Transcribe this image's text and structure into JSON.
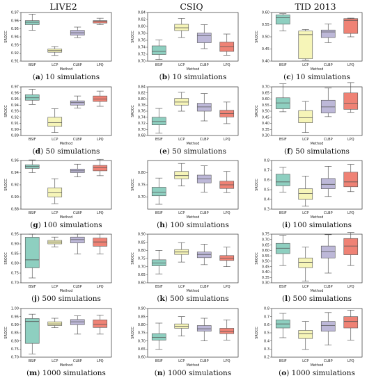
{
  "columns": [
    "LIVE2",
    "CSIQ",
    "TID 2013"
  ],
  "methods": [
    "BSIF",
    "LCP",
    "CLBP",
    "LPQ"
  ],
  "colors": [
    "#8ecfc0",
    "#f6f5b8",
    "#bdb8d8",
    "#ef8275"
  ],
  "xlabel": "Method",
  "ylabel": "SROCC",
  "chart_data": [
    {
      "type": "box",
      "label": "a",
      "caption": "10 simulations",
      "dataset": "LIVE2",
      "ylim": [
        0.91,
        0.97
      ],
      "yticks": [
        0.91,
        0.92,
        0.93,
        0.94,
        0.95,
        0.96,
        0.97
      ],
      "boxes": [
        [
          0.948,
          0.955,
          0.958,
          0.96,
          0.968
        ],
        [
          0.917,
          0.921,
          0.923,
          0.925,
          0.928
        ],
        [
          0.939,
          0.942,
          0.945,
          0.948,
          0.952
        ],
        [
          0.955,
          0.957,
          0.959,
          0.96,
          0.963
        ]
      ]
    },
    {
      "type": "box",
      "label": "b",
      "caption": "10 simulations",
      "dataset": "CSIQ",
      "ylim": [
        0.7,
        0.84
      ],
      "yticks": [
        0.7,
        0.72,
        0.74,
        0.76,
        0.78,
        0.8,
        0.82,
        0.84
      ],
      "boxes": [
        [
          0.705,
          0.719,
          0.728,
          0.744,
          0.761
        ],
        [
          0.768,
          0.788,
          0.796,
          0.806,
          0.823
        ],
        [
          0.736,
          0.753,
          0.773,
          0.781,
          0.805
        ],
        [
          0.717,
          0.728,
          0.742,
          0.755,
          0.778
        ]
      ]
    },
    {
      "type": "box",
      "label": "c",
      "caption": "10 simulations",
      "dataset": "TID 2013",
      "ylim": [
        0.4,
        0.6
      ],
      "yticks": [
        0.4,
        0.45,
        0.5,
        0.55,
        0.6
      ],
      "boxes": [
        [
          0.524,
          0.552,
          0.579,
          0.59,
          0.595
        ],
        [
          0.405,
          0.41,
          0.509,
          0.524,
          0.53
        ],
        [
          0.476,
          0.497,
          0.52,
          0.528,
          0.553
        ],
        [
          0.5,
          0.514,
          0.568,
          0.575,
          0.577
        ]
      ]
    },
    {
      "type": "box",
      "label": "d",
      "caption": "50 simulations",
      "dataset": "LIVE2",
      "ylim": [
        0.89,
        0.97
      ],
      "yticks": [
        0.89,
        0.9,
        0.91,
        0.92,
        0.93,
        0.94,
        0.95,
        0.96,
        0.97
      ],
      "boxes": [
        [
          0.941,
          0.948,
          0.952,
          0.957,
          0.966
        ],
        [
          0.895,
          0.905,
          0.911,
          0.92,
          0.934
        ],
        [
          0.935,
          0.94,
          0.944,
          0.947,
          0.955
        ],
        [
          0.938,
          0.946,
          0.95,
          0.955,
          0.963
        ]
      ]
    },
    {
      "type": "box",
      "label": "e",
      "caption": "50 simulations",
      "dataset": "CSIQ",
      "ylim": [
        0.68,
        0.84
      ],
      "yticks": [
        0.68,
        0.7,
        0.72,
        0.74,
        0.76,
        0.78,
        0.8,
        0.82,
        0.84
      ],
      "boxes": [
        [
          0.688,
          0.715,
          0.726,
          0.74,
          0.769
        ],
        [
          0.76,
          0.78,
          0.79,
          0.802,
          0.822
        ],
        [
          0.728,
          0.76,
          0.774,
          0.786,
          0.818
        ],
        [
          0.719,
          0.741,
          0.752,
          0.763,
          0.79
        ]
      ]
    },
    {
      "type": "box",
      "label": "f",
      "caption": "50 simulations",
      "dataset": "TID 2013",
      "ylim": [
        0.3,
        0.7
      ],
      "yticks": [
        0.3,
        0.35,
        0.4,
        0.45,
        0.5,
        0.55,
        0.6,
        0.65,
        0.7
      ],
      "boxes": [
        [
          0.495,
          0.52,
          0.568,
          0.61,
          0.725
        ],
        [
          0.325,
          0.405,
          0.445,
          0.505,
          0.58
        ],
        [
          0.455,
          0.485,
          0.535,
          0.59,
          0.69
        ],
        [
          0.49,
          0.515,
          0.565,
          0.65,
          0.735
        ]
      ]
    },
    {
      "type": "box",
      "label": "g",
      "caption": "100 simulations",
      "dataset": "LIVE2",
      "ylim": [
        0.88,
        0.96
      ],
      "yticks": [
        0.88,
        0.9,
        0.92,
        0.94,
        0.96
      ],
      "boxes": [
        [
          0.94,
          0.947,
          0.95,
          0.953,
          0.961
        ],
        [
          0.889,
          0.9,
          0.907,
          0.915,
          0.93
        ],
        [
          0.933,
          0.94,
          0.943,
          0.946,
          0.954
        ],
        [
          0.935,
          0.943,
          0.948,
          0.952,
          0.962
        ]
      ]
    },
    {
      "type": "box",
      "label": "h",
      "caption": "100 simulations",
      "dataset": "CSIQ",
      "ylim": [
        0.65,
        0.85
      ],
      "yticks": [
        0.7,
        0.75,
        0.8
      ],
      "boxes": [
        [
          0.67,
          0.705,
          0.72,
          0.74,
          0.778
        ],
        [
          0.745,
          0.775,
          0.788,
          0.805,
          0.838
        ],
        [
          0.72,
          0.758,
          0.775,
          0.79,
          0.828
        ],
        [
          0.718,
          0.735,
          0.75,
          0.765,
          0.805
        ]
      ]
    },
    {
      "type": "box",
      "label": "i",
      "caption": "100 simulations",
      "dataset": "TID 2013",
      "ylim": [
        0.3,
        0.8
      ],
      "yticks": [
        0.3,
        0.4,
        0.5,
        0.6,
        0.7,
        0.8
      ],
      "boxes": [
        [
          0.475,
          0.54,
          0.58,
          0.66,
          0.73
        ],
        [
          0.33,
          0.4,
          0.46,
          0.51,
          0.64
        ],
        [
          0.43,
          0.51,
          0.555,
          0.615,
          0.74
        ],
        [
          0.48,
          0.53,
          0.58,
          0.68,
          0.76
        ]
      ]
    },
    {
      "type": "box",
      "label": "j",
      "caption": "500 simulations",
      "dataset": "LIVE2",
      "ylim": [
        0.7,
        0.95
      ],
      "yticks": [
        0.7,
        0.75,
        0.8,
        0.85,
        0.9,
        0.95
      ],
      "boxes": [
        [
          0.725,
          0.777,
          0.818,
          0.934,
          0.95
        ],
        [
          0.885,
          0.9,
          0.91,
          0.918,
          0.935
        ],
        [
          0.848,
          0.905,
          0.922,
          0.935,
          0.95
        ],
        [
          0.848,
          0.888,
          0.91,
          0.93,
          0.95
        ]
      ]
    },
    {
      "type": "box",
      "label": "k",
      "caption": "500 simulations",
      "dataset": "CSIQ",
      "ylim": [
        0.6,
        0.9
      ],
      "yticks": [
        0.6,
        0.65,
        0.7,
        0.75,
        0.8,
        0.85,
        0.9
      ],
      "boxes": [
        [
          0.655,
          0.705,
          0.722,
          0.742,
          0.8
        ],
        [
          0.728,
          0.775,
          0.79,
          0.805,
          0.848
        ],
        [
          0.712,
          0.755,
          0.775,
          0.79,
          0.838
        ],
        [
          0.7,
          0.738,
          0.752,
          0.768,
          0.82
        ]
      ]
    },
    {
      "type": "box",
      "label": "l",
      "caption": "500 simulations",
      "dataset": "TID 2013",
      "ylim": [
        0.3,
        0.75
      ],
      "yticks": [
        0.3,
        0.35,
        0.4,
        0.45,
        0.5,
        0.55,
        0.6,
        0.65,
        0.7,
        0.75
      ],
      "boxes": [
        [
          0.46,
          0.57,
          0.62,
          0.665,
          0.74
        ],
        [
          0.315,
          0.44,
          0.49,
          0.53,
          0.63
        ],
        [
          0.39,
          0.53,
          0.59,
          0.64,
          0.745
        ],
        [
          0.46,
          0.56,
          0.64,
          0.71,
          0.765
        ]
      ]
    },
    {
      "type": "box",
      "label": "m",
      "caption": "1000 simulations",
      "dataset": "LIVE2",
      "ylim": [
        0.7,
        1.0
      ],
      "yticks": [
        0.7,
        0.75,
        0.8,
        0.85,
        0.9,
        0.95,
        1.0
      ],
      "boxes": [
        [
          0.72,
          0.785,
          0.92,
          0.938,
          0.965
        ],
        [
          0.882,
          0.895,
          0.905,
          0.918,
          0.94
        ],
        [
          0.842,
          0.9,
          0.918,
          0.932,
          0.955
        ],
        [
          0.842,
          0.883,
          0.903,
          0.93,
          0.96
        ]
      ]
    },
    {
      "type": "box",
      "label": "n",
      "caption": "1000 simulations",
      "dataset": "CSIQ",
      "ylim": [
        0.6,
        0.9
      ],
      "yticks": [
        0.6,
        0.65,
        0.7,
        0.75,
        0.8,
        0.85,
        0.9
      ],
      "boxes": [
        [
          0.648,
          0.705,
          0.722,
          0.745,
          0.81
        ],
        [
          0.73,
          0.778,
          0.79,
          0.805,
          0.85
        ],
        [
          0.7,
          0.76,
          0.775,
          0.795,
          0.84
        ],
        [
          0.705,
          0.745,
          0.758,
          0.778,
          0.83
        ]
      ]
    },
    {
      "type": "box",
      "label": "o",
      "caption": "1000 simulations",
      "dataset": "TID 2013",
      "ylim": [
        0.2,
        0.8
      ],
      "yticks": [
        0.2,
        0.3,
        0.4,
        0.5,
        0.6,
        0.7,
        0.8
      ],
      "boxes": [
        [
          0.44,
          0.56,
          0.61,
          0.66,
          0.74
        ],
        [
          0.295,
          0.43,
          0.49,
          0.53,
          0.64
        ],
        [
          0.35,
          0.52,
          0.59,
          0.64,
          0.75
        ],
        [
          0.41,
          0.56,
          0.64,
          0.7,
          0.78
        ]
      ]
    }
  ]
}
